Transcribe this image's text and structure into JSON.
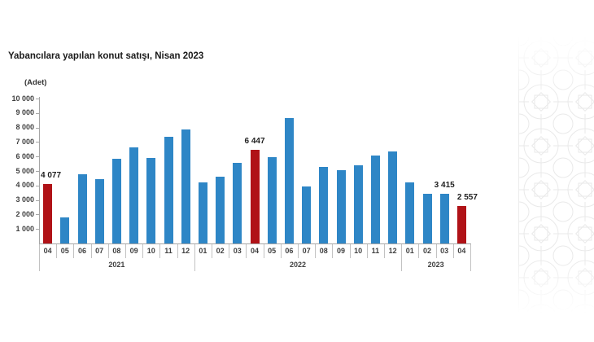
{
  "chart": {
    "title": "Yabancılara yapılan konut satışı, Nisan 2023",
    "unit_label": "(Adet)",
    "colors": {
      "bar": "#2E86C6",
      "highlight": "#B01217",
      "axis": "#A6A6A6",
      "separator": "#C2C2C2",
      "label_text": "#404040",
      "value_text": "#1F1F1F"
    }
  },
  "chart_data": {
    "type": "bar",
    "title": "Yabancılara yapılan konut satışı, Nisan 2023",
    "xlabel": "",
    "ylabel": "(Adet)",
    "ylim": [
      0,
      10000
    ],
    "ytick_step": 1000,
    "yticks": [
      "10 000",
      "9 000",
      "8 000",
      "7 000",
      "6 000",
      "5 000",
      "4 000",
      "3 000",
      "2 000",
      "1 000"
    ],
    "grid": false,
    "legend": false,
    "year_groups": [
      {
        "year": "2021",
        "months": [
          "04",
          "05",
          "06",
          "07",
          "08",
          "09",
          "10",
          "11",
          "12"
        ]
      },
      {
        "year": "2022",
        "months": [
          "01",
          "02",
          "03",
          "04",
          "05",
          "06",
          "07",
          "08",
          "09",
          "10",
          "11",
          "12"
        ]
      },
      {
        "year": "2023",
        "months": [
          "01",
          "02",
          "03",
          "04"
        ]
      }
    ],
    "series": [
      {
        "name": "Yabancılara yapılan konut satışı (Adet)",
        "values": [
          4077,
          1776,
          4748,
          4465,
          5866,
          6630,
          5900,
          7363,
          7841,
          4186,
          4591,
          5567,
          6447,
          5962,
          8630,
          3950,
          5300,
          5050,
          5400,
          6050,
          6350,
          4200,
          3400,
          3415,
          2557
        ]
      }
    ],
    "highlight_indices": [
      0,
      12,
      24
    ],
    "annotations": [
      {
        "index": 0,
        "label": "4 077",
        "align": "left",
        "dx": 2
      },
      {
        "index": 12,
        "label": "6 447",
        "align": "center",
        "dx": 0
      },
      {
        "index": 23,
        "label": "3 415",
        "align": "center",
        "dx": 0
      },
      {
        "index": 24,
        "label": "2 557",
        "align": "center",
        "dx": 7
      }
    ]
  }
}
